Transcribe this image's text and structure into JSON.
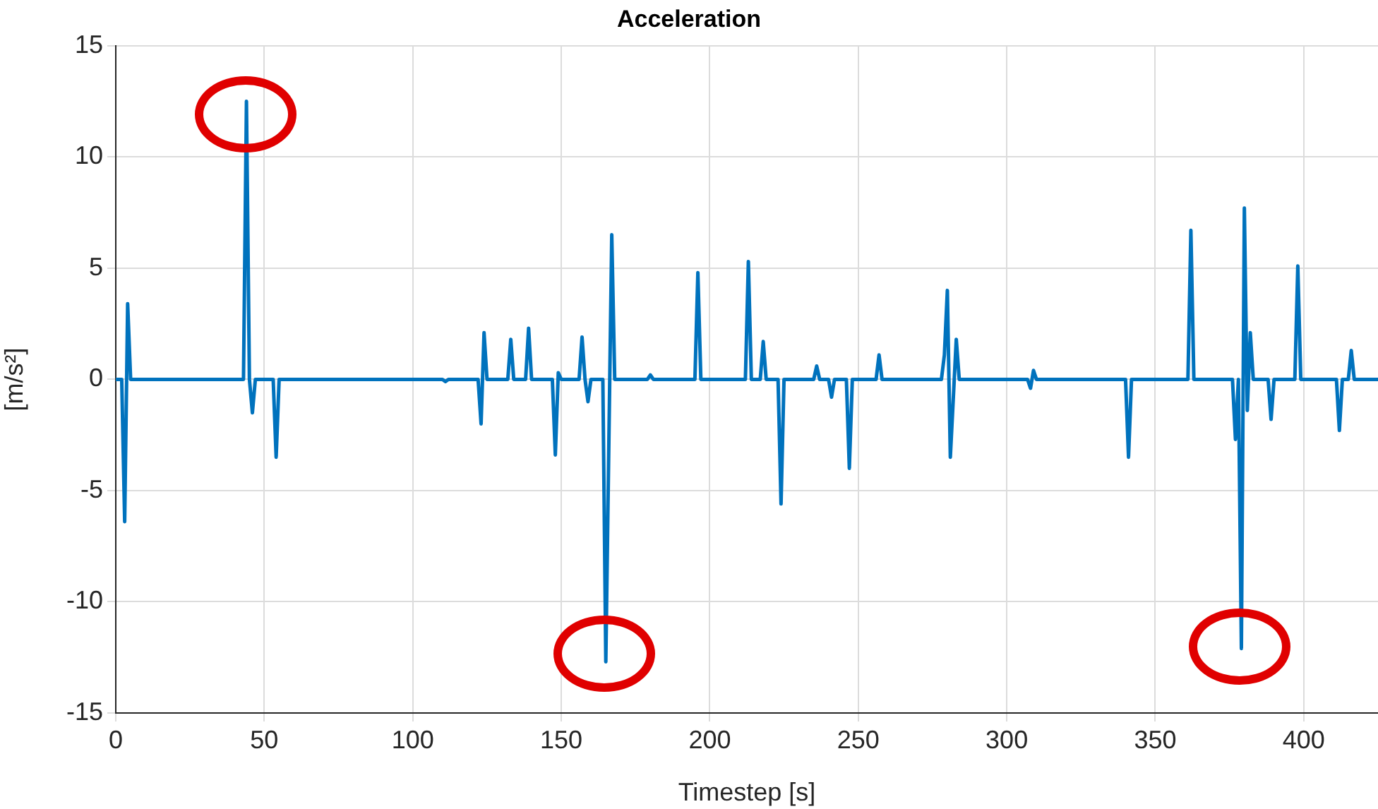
{
  "chart_data": {
    "type": "line",
    "title": "Acceleration",
    "xlabel": "Timestep [s]",
    "ylabel": "[m/s²]",
    "x": [
      0,
      2,
      3,
      4,
      5,
      43,
      44,
      45,
      46,
      47,
      53,
      54,
      55,
      110,
      111,
      112,
      122,
      123,
      124,
      125,
      132,
      133,
      134,
      138,
      139,
      140,
      147,
      148,
      149,
      150,
      156,
      157,
      158,
      159,
      160,
      164,
      165,
      167,
      168,
      179,
      180,
      181,
      195,
      196,
      197,
      212,
      213,
      214,
      217,
      218,
      219,
      223,
      224,
      225,
      235,
      236,
      237,
      240,
      241,
      242,
      246,
      247,
      248,
      256,
      257,
      258,
      278,
      279,
      280,
      281,
      283,
      284,
      307,
      308,
      309,
      310,
      340,
      341,
      342,
      361,
      362,
      363,
      376,
      377,
      378,
      379,
      380,
      381,
      382,
      383,
      388,
      389,
      390,
      397,
      398,
      399,
      411,
      412,
      413,
      415,
      416,
      417,
      425
    ],
    "series": [
      {
        "color": "#0072bd",
        "values": [
          0,
          0,
          -6.4,
          3.4,
          0,
          0,
          12.5,
          0,
          -1.5,
          0,
          0,
          -3.5,
          0,
          0,
          -0.1,
          0,
          0,
          -2,
          2.1,
          0,
          0,
          1.8,
          0,
          0,
          2.3,
          0,
          0,
          -3.4,
          0.3,
          0,
          0,
          1.9,
          0,
          -1,
          0,
          0,
          -12.7,
          6.5,
          0,
          0,
          0.2,
          0,
          0,
          4.8,
          0,
          0,
          5.3,
          0,
          0,
          1.7,
          0,
          0,
          -5.6,
          0,
          0,
          0.6,
          0,
          0,
          -0.8,
          0,
          0,
          -4,
          0,
          0,
          1.1,
          0,
          0,
          1.1,
          4,
          -3.5,
          1.8,
          0,
          0,
          -0.4,
          0.4,
          0,
          0,
          -3.5,
          0,
          0,
          6.7,
          0,
          0,
          -2.7,
          0,
          -12.1,
          7.7,
          -1.4,
          2.1,
          0,
          0,
          -1.8,
          0,
          0,
          5.1,
          0,
          0,
          -2.3,
          0,
          0,
          1.3,
          0,
          0
        ]
      }
    ],
    "xlim": [
      0,
      425
    ],
    "xticks": [
      0,
      50,
      100,
      150,
      200,
      250,
      300,
      350,
      400
    ],
    "ylim": [
      -15,
      15
    ],
    "yticks": [
      -15,
      -10,
      -5,
      0,
      5,
      10,
      15
    ],
    "grid": true,
    "legend": false,
    "marker": "none",
    "line_style": "solid"
  }
}
